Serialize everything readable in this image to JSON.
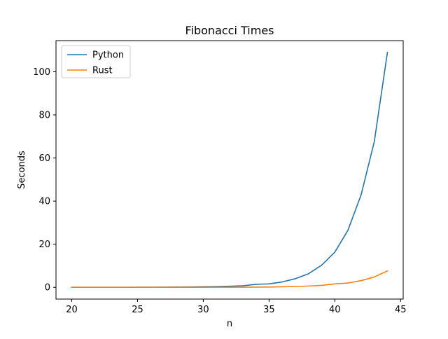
{
  "chart_data": {
    "type": "line",
    "title": "Fibonacci Times",
    "xlabel": "n",
    "ylabel": "Seconds",
    "xlim": [
      18.8,
      45.2
    ],
    "ylim": [
      -5.45,
      114.45
    ],
    "xticks": [
      20,
      25,
      30,
      35,
      40,
      45
    ],
    "xtick_labels": [
      "20",
      "25",
      "30",
      "35",
      "40",
      "45"
    ],
    "yticks": [
      0,
      20,
      40,
      60,
      80,
      100
    ],
    "ytick_labels": [
      "0",
      "20",
      "40",
      "60",
      "80",
      "100"
    ],
    "grid": false,
    "legend_position": "top-left",
    "x": [
      20,
      21,
      22,
      23,
      24,
      25,
      26,
      27,
      28,
      29,
      30,
      31,
      32,
      33,
      34,
      35,
      36,
      37,
      38,
      39,
      40,
      41,
      42,
      43,
      44
    ],
    "series": [
      {
        "name": "Python",
        "color": "#1f77b4",
        "values": [
          0.0,
          0.0,
          0.0,
          0.0,
          0.0,
          0.05,
          0.05,
          0.08,
          0.12,
          0.18,
          0.25,
          0.35,
          0.5,
          0.7,
          1.4,
          1.6,
          2.5,
          4.0,
          6.3,
          10.3,
          16.3,
          26.5,
          42.9,
          67.5,
          109.0
        ]
      },
      {
        "name": "Rust",
        "color": "#ff7f0e",
        "values": [
          0.0,
          0.0,
          0.0,
          0.0,
          0.0,
          0.0,
          0.0,
          0.0,
          0.0,
          0.0,
          0.02,
          0.03,
          0.04,
          0.06,
          0.1,
          0.15,
          0.25,
          0.4,
          0.6,
          0.9,
          1.6,
          2.0,
          3.1,
          4.8,
          7.6
        ]
      }
    ]
  }
}
